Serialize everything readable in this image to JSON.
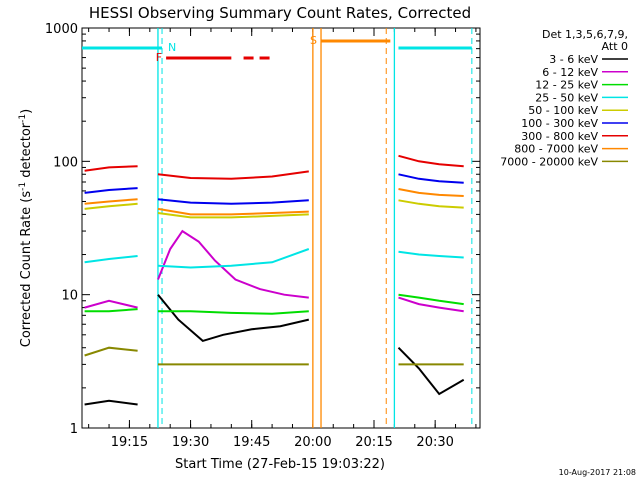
{
  "chart_data": {
    "type": "line",
    "title": "HESSI Observing Summary Count Rates, Corrected",
    "xlabel": "Start Time (27-Feb-15 19:03:22)",
    "ylabel_main": "Corrected Count Rate (s",
    "ylabel_sup1": "-1",
    "ylabel_mid": " detector",
    "ylabel_sup2": "-1",
    "ylabel_end": ")",
    "y_scale": "log",
    "ylim": [
      1,
      1000
    ],
    "xlim": [
      "19:03:22",
      "20:41:00"
    ],
    "y_ticks": [
      "1",
      "10",
      "100",
      "1000"
    ],
    "x_ticks": [
      "19:15",
      "19:30",
      "19:45",
      "20:00",
      "20:15",
      "20:30"
    ],
    "legend_header": [
      "Det 1,3,5,6,7,9,",
      "Att 0"
    ],
    "series": [
      {
        "name": "3 - 6 keV",
        "color": "#000000",
        "segments": [
          {
            "x": [
              "19:04",
              "19:10",
              "19:17"
            ],
            "y": [
              1.5,
              1.6,
              1.5
            ]
          },
          {
            "x": [
              "19:22",
              "19:27",
              "19:33",
              "19:38",
              "19:45",
              "19:52",
              "19:59"
            ],
            "y": [
              10,
              6.5,
              4.5,
              5,
              5.5,
              5.8,
              6.5
            ]
          },
          {
            "x": [
              "20:21",
              "20:26",
              "20:31",
              "20:37"
            ],
            "y": [
              4,
              2.8,
              1.8,
              2.3
            ]
          }
        ]
      },
      {
        "name": "6 - 12 keV",
        "color": "#cc00cc",
        "segments": [
          {
            "x": [
              "19:04",
              "19:10",
              "19:17"
            ],
            "y": [
              8,
              9,
              8
            ]
          },
          {
            "x": [
              "19:22",
              "19:25",
              "19:28",
              "19:32",
              "19:36",
              "19:41",
              "19:47",
              "19:53",
              "19:59"
            ],
            "y": [
              13,
              22,
              30,
              25,
              18,
              13,
              11,
              10,
              9.5
            ]
          },
          {
            "x": [
              "20:21",
              "20:26",
              "20:31",
              "20:37"
            ],
            "y": [
              9.5,
              8.5,
              8,
              7.5
            ]
          }
        ]
      },
      {
        "name": "12 - 25 keV",
        "color": "#00dd00",
        "segments": [
          {
            "x": [
              "19:04",
              "19:10",
              "19:17"
            ],
            "y": [
              7.5,
              7.5,
              7.8
            ]
          },
          {
            "x": [
              "19:22",
              "19:30",
              "19:40",
              "19:50",
              "19:59"
            ],
            "y": [
              7.5,
              7.5,
              7.3,
              7.2,
              7.5
            ]
          },
          {
            "x": [
              "20:21",
              "20:26",
              "20:31",
              "20:37"
            ],
            "y": [
              10,
              9.5,
              9,
              8.5
            ]
          }
        ]
      },
      {
        "name": "25 - 50 keV",
        "color": "#00e5e5",
        "segments": [
          {
            "x": [
              "19:04",
              "19:10",
              "19:17"
            ],
            "y": [
              17.5,
              18.5,
              19.5
            ]
          },
          {
            "x": [
              "19:22",
              "19:30",
              "19:40",
              "19:50",
              "19:59"
            ],
            "y": [
              16.5,
              16,
              16.5,
              17.5,
              22
            ]
          },
          {
            "x": [
              "20:21",
              "20:26",
              "20:31",
              "20:37"
            ],
            "y": [
              21,
              20,
              19.5,
              19
            ]
          }
        ]
      },
      {
        "name": "50 - 100 keV",
        "color": "#cccc00",
        "segments": [
          {
            "x": [
              "19:04",
              "19:10",
              "19:17"
            ],
            "y": [
              44,
              46,
              48
            ]
          },
          {
            "x": [
              "19:22",
              "19:30",
              "19:40",
              "19:50",
              "19:59"
            ],
            "y": [
              41,
              38,
              38,
              39,
              40
            ]
          },
          {
            "x": [
              "20:21",
              "20:26",
              "20:31",
              "20:37"
            ],
            "y": [
              51,
              48,
              46,
              45
            ]
          }
        ]
      },
      {
        "name": "100 - 300 keV",
        "color": "#0000ee",
        "segments": [
          {
            "x": [
              "19:04",
              "19:10",
              "19:17"
            ],
            "y": [
              58,
              61,
              63
            ]
          },
          {
            "x": [
              "19:22",
              "19:30",
              "19:40",
              "19:50",
              "19:59"
            ],
            "y": [
              52,
              49,
              48,
              49,
              51
            ]
          },
          {
            "x": [
              "20:21",
              "20:26",
              "20:31",
              "20:37"
            ],
            "y": [
              80,
              74,
              71,
              69
            ]
          }
        ]
      },
      {
        "name": "300 - 800 keV",
        "color": "#e50000",
        "segments": [
          {
            "x": [
              "19:04",
              "19:10",
              "19:17"
            ],
            "y": [
              85,
              90,
              92
            ]
          },
          {
            "x": [
              "19:22",
              "19:30",
              "19:40",
              "19:50",
              "19:59"
            ],
            "y": [
              80,
              75,
              74,
              77,
              84
            ]
          },
          {
            "x": [
              "20:21",
              "20:26",
              "20:31",
              "20:37"
            ],
            "y": [
              110,
              100,
              95,
              92
            ]
          }
        ]
      },
      {
        "name": "800 - 7000 keV",
        "color": "#ff8800",
        "segments": [
          {
            "x": [
              "19:04",
              "19:10",
              "19:17"
            ],
            "y": [
              48,
              50,
              52
            ]
          },
          {
            "x": [
              "19:22",
              "19:30",
              "19:40",
              "19:50",
              "19:59"
            ],
            "y": [
              44,
              40,
              40,
              41,
              42
            ]
          },
          {
            "x": [
              "20:21",
              "20:26",
              "20:31",
              "20:37"
            ],
            "y": [
              62,
              58,
              56,
              55
            ]
          }
        ]
      },
      {
        "name": "7000 - 20000 keV",
        "color": "#888800",
        "segments": [
          {
            "x": [
              "19:04",
              "19:10",
              "19:17"
            ],
            "y": [
              3.5,
              4,
              3.8
            ]
          },
          {
            "x": [
              "19:22",
              "19:30",
              "19:40",
              "19:50",
              "19:59"
            ],
            "y": [
              3,
              3,
              3,
              3,
              3
            ]
          },
          {
            "x": [
              "20:21",
              "20:26",
              "20:31",
              "20:37"
            ],
            "y": [
              3,
              3,
              3,
              3
            ]
          }
        ]
      }
    ],
    "flags": [
      {
        "label": "N",
        "color": "#00e5e5",
        "solid": [
          [
            "19:03:22",
            "19:23"
          ],
          [
            "20:21",
            "20:39"
          ]
        ]
      },
      {
        "label": "F",
        "color": "#e50000",
        "solid": [
          [
            "19:24",
            "19:40"
          ]
        ],
        "dashed": [
          [
            "19:43",
            "19:50"
          ]
        ]
      },
      {
        "label": "S",
        "color": "#ff8800",
        "solid": [
          [
            "20:02",
            "20:19"
          ]
        ]
      }
    ],
    "vlines_solid": [
      {
        "x": "19:22",
        "color": "#00e5e5"
      },
      {
        "x": "20:00",
        "color": "#ff8800"
      },
      {
        "x": "20:02",
        "color": "#ff8800"
      },
      {
        "x": "20:20",
        "color": "#00e5e5"
      }
    ],
    "vlines_dashed": [
      {
        "x": "19:23",
        "color": "#00e5e5"
      },
      {
        "x": "20:18",
        "color": "#ff8800"
      },
      {
        "x": "20:39",
        "color": "#00e5e5"
      }
    ],
    "footer_date": "10-Aug-2017 21:08"
  }
}
